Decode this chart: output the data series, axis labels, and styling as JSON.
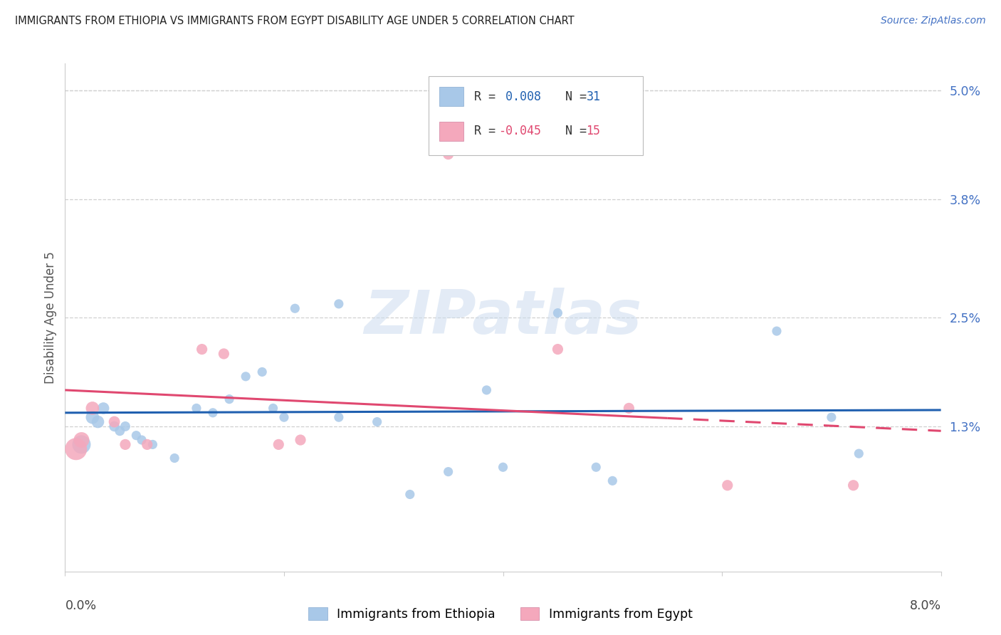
{
  "title": "IMMIGRANTS FROM ETHIOPIA VS IMMIGRANTS FROM EGYPT DISABILITY AGE UNDER 5 CORRELATION CHART",
  "source": "Source: ZipAtlas.com",
  "ylabel": "Disability Age Under 5",
  "ytick_values": [
    1.3,
    2.5,
    3.8,
    5.0
  ],
  "xlim": [
    0.0,
    8.0
  ],
  "ylim": [
    -0.3,
    5.3
  ],
  "ymin_data": 0.0,
  "ymax_data": 5.0,
  "color_ethiopia": "#a8c8e8",
  "color_egypt": "#f4a8bc",
  "trendline_ethiopia_color": "#2060b0",
  "trendline_egypt_color": "#e04870",
  "ethiopia_points_x": [
    0.15,
    0.25,
    0.3,
    0.35,
    0.45,
    0.5,
    0.55,
    0.65,
    0.7,
    0.8,
    1.0,
    1.2,
    1.35,
    1.5,
    1.65,
    1.8,
    1.9,
    2.0,
    2.1,
    2.5,
    2.5,
    2.85,
    3.15,
    3.5,
    3.85,
    4.0,
    4.5,
    4.85,
    5.0,
    6.5,
    7.0,
    7.25
  ],
  "ethiopia_points_y": [
    1.1,
    1.4,
    1.35,
    1.5,
    1.3,
    1.25,
    1.3,
    1.2,
    1.15,
    1.1,
    0.95,
    1.5,
    1.45,
    1.6,
    1.85,
    1.9,
    1.5,
    1.4,
    2.6,
    2.65,
    1.4,
    1.35,
    0.55,
    0.8,
    1.7,
    0.85,
    2.55,
    0.85,
    0.7,
    2.35,
    1.4,
    1.0
  ],
  "ethiopia_sizes": [
    350,
    180,
    160,
    140,
    110,
    100,
    100,
    90,
    90,
    90,
    90,
    90,
    90,
    90,
    90,
    90,
    90,
    90,
    90,
    90,
    90,
    90,
    90,
    90,
    90,
    90,
    90,
    90,
    90,
    90,
    90,
    90
  ],
  "egypt_points_x": [
    0.1,
    0.15,
    0.25,
    0.45,
    0.55,
    0.75,
    1.25,
    1.45,
    1.95,
    2.15,
    3.5,
    4.5,
    5.15,
    6.05,
    7.2
  ],
  "egypt_points_y": [
    1.05,
    1.15,
    1.5,
    1.35,
    1.1,
    1.1,
    2.15,
    2.1,
    1.1,
    1.15,
    4.3,
    2.15,
    1.5,
    0.65,
    0.65
  ],
  "egypt_sizes": [
    500,
    250,
    180,
    130,
    120,
    120,
    120,
    120,
    120,
    120,
    120,
    120,
    120,
    120,
    120
  ],
  "trendline_eth_y0": 1.45,
  "trendline_eth_y8": 1.48,
  "trendline_egy_y0": 1.7,
  "trendline_egy_y8": 1.25,
  "trendline_egy_solid_end": 5.5,
  "watermark_text": "ZIPatlas",
  "background_color": "#ffffff",
  "grid_color": "#d0d0d0",
  "legend_r_eth_color": "#2060b0",
  "legend_n_eth_color": "#2060b0",
  "legend_r_egy_color": "#e04870",
  "legend_n_egy_color": "#e04870",
  "bottom_legend_items": [
    "Immigrants from Ethiopia",
    "Immigrants from Egypt"
  ]
}
